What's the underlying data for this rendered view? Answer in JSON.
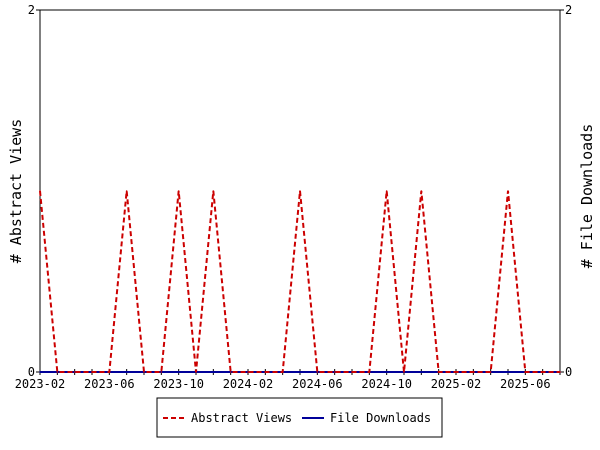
{
  "chart_data": {
    "type": "line",
    "x": [
      "2023-02",
      "2023-03",
      "2023-04",
      "2023-05",
      "2023-06",
      "2023-07",
      "2023-08",
      "2023-09",
      "2023-10",
      "2023-11",
      "2023-12",
      "2024-01",
      "2024-02",
      "2024-03",
      "2024-04",
      "2024-05",
      "2024-06",
      "2024-07",
      "2024-08",
      "2024-09",
      "2024-10",
      "2024-11",
      "2024-12",
      "2025-01",
      "2025-02",
      "2025-03",
      "2025-04",
      "2025-05",
      "2025-06",
      "2025-07",
      "2025-08"
    ],
    "series": [
      {
        "name": "Abstract Views",
        "color": "#cc0000",
        "dash": "dashed",
        "values": [
          1,
          0,
          0,
          0,
          0,
          1,
          0,
          0,
          1,
          0,
          1,
          0,
          0,
          0,
          0,
          1,
          0,
          0,
          0,
          0,
          1,
          0,
          1,
          0,
          0,
          0,
          0,
          1,
          0,
          0,
          0
        ]
      },
      {
        "name": "File Downloads",
        "color": "#000099",
        "dash": "solid",
        "values": [
          0,
          0,
          0,
          0,
          0,
          0,
          0,
          0,
          0,
          0,
          0,
          0,
          0,
          0,
          0,
          0,
          0,
          0,
          0,
          0,
          0,
          0,
          0,
          0,
          0,
          0,
          0,
          0,
          0,
          0,
          0
        ]
      }
    ],
    "x_tick_labels": [
      "2023-02",
      "2023-06",
      "2023-10",
      "2024-02",
      "2024-06",
      "2024-10",
      "2025-02",
      "2025-06"
    ],
    "ylabel_left": "# Abstract Views",
    "ylabel_right": "# File Downloads",
    "ylim": [
      0,
      2
    ],
    "y_tick_labels": [
      "0",
      "2"
    ],
    "grid": false,
    "legend_position": "bottom-center"
  }
}
